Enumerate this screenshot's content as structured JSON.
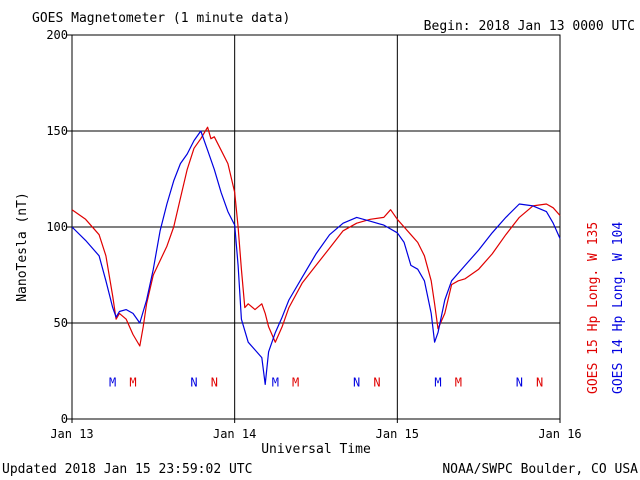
{
  "chart_data": {
    "type": "line",
    "title": "GOES Magnetometer (1 minute data)",
    "begin_label": "Begin:  2018 Jan 13 0000 UTC",
    "xlabel": "Universal Time",
    "ylabel": "NanoTesla (nT)",
    "footer_left": "Updated 2018 Jan 15 23:59:02 UTC",
    "footer_right": "NOAA/SWPC Boulder, CO USA",
    "xlim": [
      0,
      72
    ],
    "ylim": [
      0,
      200
    ],
    "x_unit": "hours since 2018 Jan 13 0000 UTC",
    "x_ticks": [
      {
        "value": 0,
        "label": "Jan 13"
      },
      {
        "value": 24,
        "label": "Jan 14"
      },
      {
        "value": 48,
        "label": "Jan 15"
      },
      {
        "value": 72,
        "label": "Jan 16"
      }
    ],
    "y_ticks": [
      {
        "value": 0,
        "label": "0"
      },
      {
        "value": 50,
        "label": "50"
      },
      {
        "value": 100,
        "label": "100"
      },
      {
        "value": 150,
        "label": "150"
      },
      {
        "value": 200,
        "label": "200"
      }
    ],
    "grid": true,
    "legend_position": "right",
    "series": [
      {
        "name": "GOES 15 Hp  Long. W 135",
        "color": "#e00000",
        "points": [
          [
            0,
            109
          ],
          [
            2,
            104
          ],
          [
            4,
            96
          ],
          [
            5,
            85
          ],
          [
            6,
            64
          ],
          [
            6.5,
            52
          ],
          [
            7,
            55
          ],
          [
            8,
            52
          ],
          [
            9,
            44
          ],
          [
            10,
            38
          ],
          [
            10.5,
            48
          ],
          [
            11,
            60
          ],
          [
            12,
            75
          ],
          [
            14,
            90
          ],
          [
            15,
            100
          ],
          [
            16,
            115
          ],
          [
            17,
            130
          ],
          [
            18,
            141
          ],
          [
            19,
            146
          ],
          [
            20,
            152
          ],
          [
            20.5,
            146
          ],
          [
            21,
            147
          ],
          [
            22,
            140
          ],
          [
            23,
            133
          ],
          [
            24,
            118
          ],
          [
            24.5,
            100
          ],
          [
            25,
            78
          ],
          [
            25.5,
            58
          ],
          [
            26,
            60
          ],
          [
            27,
            57
          ],
          [
            28,
            60
          ],
          [
            28.5,
            55
          ],
          [
            29,
            48
          ],
          [
            30,
            40
          ],
          [
            31,
            48
          ],
          [
            32,
            58
          ],
          [
            34,
            71
          ],
          [
            36,
            80
          ],
          [
            38,
            89
          ],
          [
            40,
            98
          ],
          [
            42,
            102
          ],
          [
            44,
            104
          ],
          [
            46,
            105
          ],
          [
            47,
            109
          ],
          [
            48,
            104
          ],
          [
            49,
            100
          ],
          [
            50,
            96
          ],
          [
            51,
            92
          ],
          [
            52,
            85
          ],
          [
            53,
            72
          ],
          [
            53.5,
            60
          ],
          [
            54,
            47
          ],
          [
            55,
            55
          ],
          [
            56,
            70
          ],
          [
            57,
            72
          ],
          [
            58,
            73
          ],
          [
            60,
            78
          ],
          [
            62,
            86
          ],
          [
            64,
            96
          ],
          [
            66,
            105
          ],
          [
            68,
            111
          ],
          [
            70,
            112
          ],
          [
            71,
            110
          ],
          [
            72,
            106
          ]
        ]
      },
      {
        "name": "GOES 14 Hp  Long. W 104",
        "color": "#0000e0",
        "points": [
          [
            0,
            100
          ],
          [
            2,
            93
          ],
          [
            4,
            85
          ],
          [
            5,
            72
          ],
          [
            6,
            58
          ],
          [
            6.5,
            53
          ],
          [
            7,
            56
          ],
          [
            8,
            57
          ],
          [
            9,
            55
          ],
          [
            10,
            50
          ],
          [
            11,
            62
          ],
          [
            12,
            78
          ],
          [
            13,
            98
          ],
          [
            14,
            112
          ],
          [
            15,
            124
          ],
          [
            16,
            133
          ],
          [
            17,
            138
          ],
          [
            18,
            145
          ],
          [
            19,
            150
          ],
          [
            20,
            140
          ],
          [
            21,
            130
          ],
          [
            22,
            118
          ],
          [
            23,
            108
          ],
          [
            24,
            101
          ],
          [
            24.5,
            80
          ],
          [
            25,
            52
          ],
          [
            26,
            40
          ],
          [
            27,
            36
          ],
          [
            28,
            32
          ],
          [
            28.5,
            18
          ],
          [
            29,
            35
          ],
          [
            30,
            45
          ],
          [
            31,
            53
          ],
          [
            32,
            62
          ],
          [
            34,
            74
          ],
          [
            36,
            86
          ],
          [
            38,
            96
          ],
          [
            40,
            102
          ],
          [
            42,
            105
          ],
          [
            44,
            103
          ],
          [
            46,
            101
          ],
          [
            48,
            97
          ],
          [
            49,
            92
          ],
          [
            50,
            80
          ],
          [
            51,
            78
          ],
          [
            52,
            72
          ],
          [
            53,
            55
          ],
          [
            53.5,
            40
          ],
          [
            54,
            45
          ],
          [
            55,
            62
          ],
          [
            56,
            72
          ],
          [
            57,
            76
          ],
          [
            58,
            80
          ],
          [
            60,
            88
          ],
          [
            62,
            97
          ],
          [
            64,
            105
          ],
          [
            66,
            112
          ],
          [
            68,
            111
          ],
          [
            70,
            108
          ],
          [
            71,
            102
          ],
          [
            72,
            94
          ]
        ]
      }
    ],
    "markers": [
      {
        "label": "M",
        "x": 6,
        "y": 17,
        "color": "#0000e0"
      },
      {
        "label": "M",
        "x": 9,
        "y": 17,
        "color": "#e00000"
      },
      {
        "label": "N",
        "x": 18,
        "y": 17,
        "color": "#0000e0"
      },
      {
        "label": "N",
        "x": 21,
        "y": 17,
        "color": "#e00000"
      },
      {
        "label": "M",
        "x": 30,
        "y": 17,
        "color": "#0000e0"
      },
      {
        "label": "M",
        "x": 33,
        "y": 17,
        "color": "#e00000"
      },
      {
        "label": "N",
        "x": 42,
        "y": 17,
        "color": "#0000e0"
      },
      {
        "label": "N",
        "x": 45,
        "y": 17,
        "color": "#e00000"
      },
      {
        "label": "M",
        "x": 54,
        "y": 17,
        "color": "#0000e0"
      },
      {
        "label": "M",
        "x": 57,
        "y": 17,
        "color": "#e00000"
      },
      {
        "label": "N",
        "x": 66,
        "y": 17,
        "color": "#0000e0"
      },
      {
        "label": "N",
        "x": 69,
        "y": 17,
        "color": "#e00000"
      }
    ]
  }
}
